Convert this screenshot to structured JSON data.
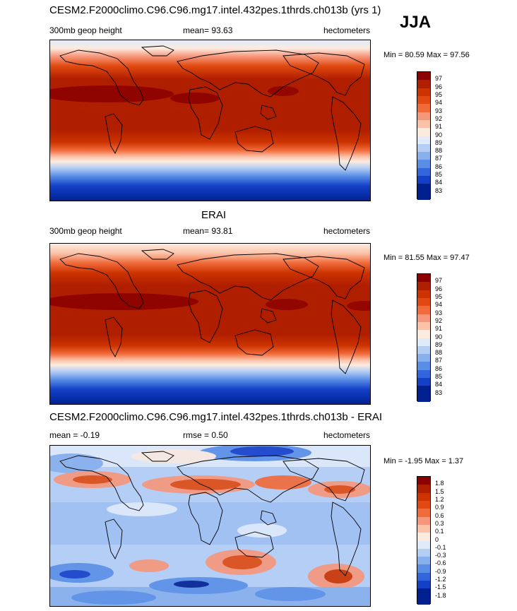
{
  "season": "JJA",
  "panels": [
    {
      "title": "CESM2.F2000climo.C96.C96.mg17.intel.432pes.1thrds.ch013b (yrs 1)",
      "left_label": "300mb geop height",
      "mean_label": "mean=  93.63",
      "units": "hectometers",
      "minmax": "Min =  80.59 Max =  97.56",
      "levels": [
        "97",
        "96",
        "95",
        "94",
        "93",
        "92",
        "91",
        "90",
        "89",
        "88",
        "87",
        "86",
        "85",
        "84",
        "83"
      ],
      "colors": [
        "#8b0000",
        "#b01e00",
        "#cc3300",
        "#e04a10",
        "#f06a3a",
        "#f6967a",
        "#fbc2a8",
        "#fdebe0",
        "#dfeafb",
        "#b4cef5",
        "#88b0ee",
        "#5a8ee6",
        "#3366dd",
        "#1440c8",
        "#002090"
      ]
    },
    {
      "title": "ERAI",
      "left_label": "300mb geop height",
      "mean_label": "mean=  93.81",
      "units": "hectometers",
      "minmax": "Min =  81.55 Max =  97.47",
      "levels": [
        "97",
        "96",
        "95",
        "94",
        "93",
        "92",
        "91",
        "90",
        "89",
        "88",
        "87",
        "86",
        "85",
        "84",
        "83"
      ],
      "colors": [
        "#8b0000",
        "#b01e00",
        "#cc3300",
        "#e04a10",
        "#f06a3a",
        "#f6967a",
        "#fbc2a8",
        "#fdebe0",
        "#dfeafb",
        "#b4cef5",
        "#88b0ee",
        "#5a8ee6",
        "#3366dd",
        "#1440c8",
        "#002090"
      ]
    },
    {
      "title": "CESM2.F2000climo.C96.C96.mg17.intel.432pes.1thrds.ch013b - ERAI",
      "left_label": "mean =  -0.19",
      "mean_label": "rmse =   0.50",
      "units": "hectometers",
      "minmax": "Min =  -1.95 Max =   1.37",
      "levels": [
        "1.8",
        "1.5",
        "1.2",
        "0.9",
        "0.6",
        "0.3",
        "0.1",
        "0",
        "-0.1",
        "-0.3",
        "-0.6",
        "-0.9",
        "-1.2",
        "-1.5",
        "-1.8"
      ],
      "colors": [
        "#8b0000",
        "#b01e00",
        "#cc3300",
        "#e04a10",
        "#f06a3a",
        "#f6967a",
        "#fbc2a8",
        "#fdebe0",
        "#dfeafb",
        "#b4cef5",
        "#88b0ee",
        "#5a8ee6",
        "#3366dd",
        "#1440c8",
        "#002090"
      ]
    }
  ],
  "chart_data": [
    {
      "type": "heatmap",
      "title": "CESM2.F2000climo.C96.C96.mg17.intel.432pes.1thrds.ch013b (yrs 1)",
      "variable": "300mb geop height",
      "units": "hectometers",
      "mean": 93.63,
      "min": 80.59,
      "max": 97.56,
      "levels": [
        83,
        84,
        85,
        86,
        87,
        88,
        89,
        90,
        91,
        92,
        93,
        94,
        95,
        96,
        97
      ]
    },
    {
      "type": "heatmap",
      "title": "ERAI",
      "variable": "300mb geop height",
      "units": "hectometers",
      "mean": 93.81,
      "min": 81.55,
      "max": 97.47,
      "levels": [
        83,
        84,
        85,
        86,
        87,
        88,
        89,
        90,
        91,
        92,
        93,
        94,
        95,
        96,
        97
      ]
    },
    {
      "type": "heatmap",
      "title": "CESM2.F2000climo.C96.C96.mg17.intel.432pes.1thrds.ch013b - ERAI",
      "units": "hectometers",
      "mean": -0.19,
      "rmse": 0.5,
      "min": -1.95,
      "max": 1.37,
      "levels": [
        -1.8,
        -1.5,
        -1.2,
        -0.9,
        -0.6,
        -0.3,
        -0.1,
        0,
        0.1,
        0.3,
        0.6,
        0.9,
        1.2,
        1.5,
        1.8
      ]
    }
  ]
}
